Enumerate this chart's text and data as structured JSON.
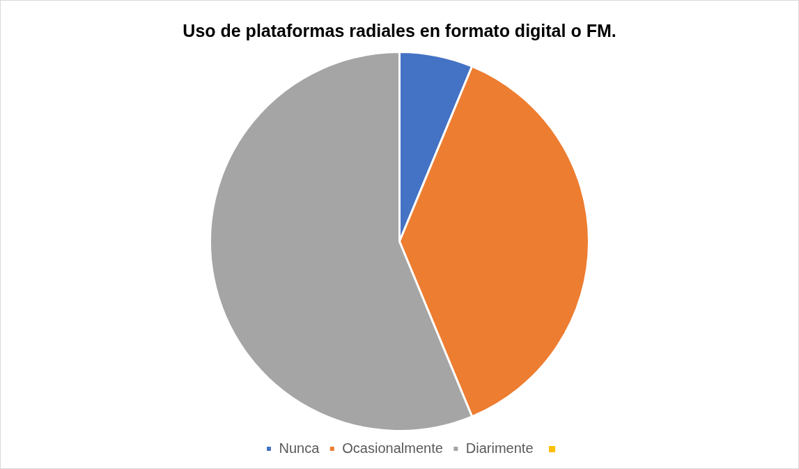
{
  "chart_data": {
    "type": "pie",
    "title": "Uso de plataformas radiales en formato digital o FM.",
    "categories": [
      "Nunca",
      "Ocasionalmente",
      "Diarimente",
      null
    ],
    "values": [
      6.25,
      37.5,
      56.25,
      0
    ],
    "colors": [
      "#4472c4",
      "#ed7d31",
      "#a5a5a5",
      "#ffc000"
    ],
    "legend": "bottom"
  }
}
